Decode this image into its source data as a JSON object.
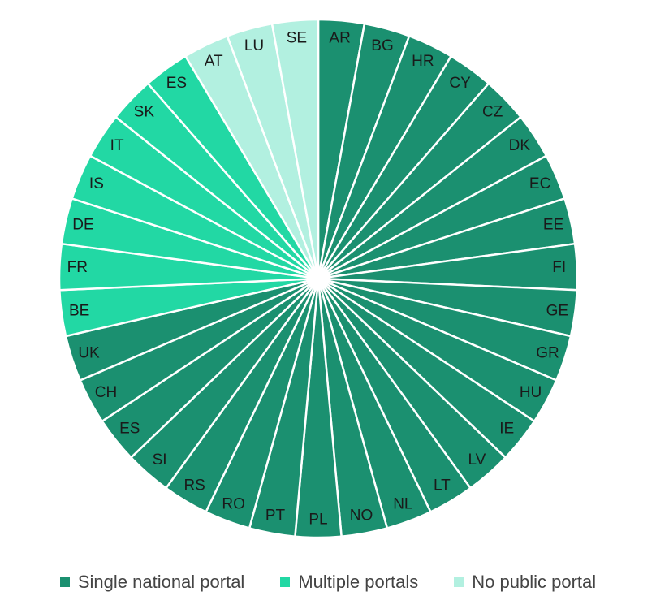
{
  "chart_data": {
    "type": "pie",
    "categories": [
      "Single national portal",
      "Multiple portals",
      "No public portal"
    ],
    "colors": [
      "#1b9070",
      "#22d8a4",
      "#b2f0e0"
    ],
    "slices": [
      {
        "label": "AR",
        "category": 0,
        "value": 1
      },
      {
        "label": "BG",
        "category": 0,
        "value": 1
      },
      {
        "label": "HR",
        "category": 0,
        "value": 1
      },
      {
        "label": "CY",
        "category": 0,
        "value": 1
      },
      {
        "label": "CZ",
        "category": 0,
        "value": 1
      },
      {
        "label": "DK",
        "category": 0,
        "value": 1
      },
      {
        "label": "EC",
        "category": 0,
        "value": 1
      },
      {
        "label": "EE",
        "category": 0,
        "value": 1
      },
      {
        "label": "FI",
        "category": 0,
        "value": 1
      },
      {
        "label": "GE",
        "category": 0,
        "value": 1
      },
      {
        "label": "GR",
        "category": 0,
        "value": 1
      },
      {
        "label": "HU",
        "category": 0,
        "value": 1
      },
      {
        "label": "IE",
        "category": 0,
        "value": 1
      },
      {
        "label": "LV",
        "category": 0,
        "value": 1
      },
      {
        "label": "LT",
        "category": 0,
        "value": 1
      },
      {
        "label": "NL",
        "category": 0,
        "value": 1
      },
      {
        "label": "NO",
        "category": 0,
        "value": 1
      },
      {
        "label": "PL",
        "category": 0,
        "value": 1
      },
      {
        "label": "PT",
        "category": 0,
        "value": 1
      },
      {
        "label": "RO",
        "category": 0,
        "value": 1
      },
      {
        "label": "RS",
        "category": 0,
        "value": 1
      },
      {
        "label": "SI",
        "category": 0,
        "value": 1
      },
      {
        "label": "ES",
        "category": 0,
        "value": 1
      },
      {
        "label": "CH",
        "category": 0,
        "value": 1
      },
      {
        "label": "UK",
        "category": 0,
        "value": 1
      },
      {
        "label": "BE",
        "category": 1,
        "value": 1
      },
      {
        "label": "FR",
        "category": 1,
        "value": 1
      },
      {
        "label": "DE",
        "category": 1,
        "value": 1
      },
      {
        "label": "IS",
        "category": 1,
        "value": 1
      },
      {
        "label": "IT",
        "category": 1,
        "value": 1
      },
      {
        "label": "SK",
        "category": 1,
        "value": 1
      },
      {
        "label": "ES",
        "category": 1,
        "value": 1
      },
      {
        "label": "AT",
        "category": 2,
        "value": 1
      },
      {
        "label": "LU",
        "category": 2,
        "value": 1
      },
      {
        "label": "SE",
        "category": 2,
        "value": 1
      }
    ],
    "legend": [
      {
        "label": "Single national portal",
        "color": "#1b9070"
      },
      {
        "label": "Multiple portals",
        "color": "#22d8a4"
      },
      {
        "label": "No public portal",
        "color": "#b2f0e0"
      }
    ],
    "legend_position": "bottom"
  }
}
